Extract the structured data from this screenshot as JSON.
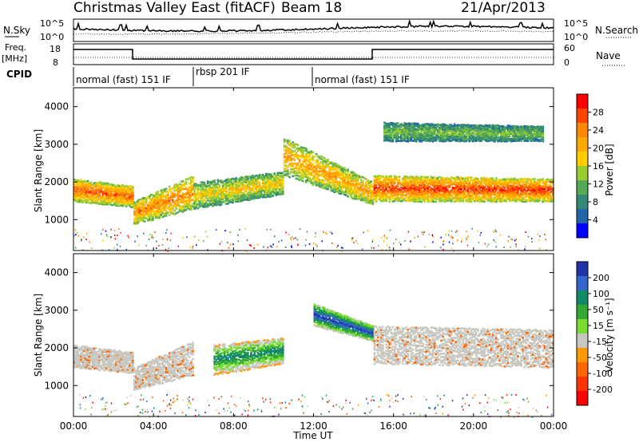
{
  "header": {
    "station": "Christmas Valley East (fitACF)",
    "beam": "Beam 18",
    "date": "21/Apr/2013"
  },
  "panels": {
    "nsky": {
      "left_label": "N.Sky",
      "right_label": "N.Search",
      "left_ticks": [
        "10^5",
        "10^0"
      ],
      "right_ticks": [
        "10^5",
        "10^0"
      ]
    },
    "freq": {
      "left_label_1": "Freq.",
      "left_label_2": "[MHz]",
      "right_label": "Nave",
      "left_ticks": [
        "18",
        "8"
      ],
      "right_ticks": [
        "60",
        "0"
      ]
    },
    "cpid": {
      "label": "CPID",
      "segments": [
        {
          "name": "normal (fast) 151 IF",
          "start_h": 0,
          "end_h": 6
        },
        {
          "name": "rbsp 201 IF",
          "start_h": 6,
          "end_h": 12
        },
        {
          "name": "normal (fast) 151 IF",
          "start_h": 12,
          "end_h": 24
        }
      ]
    }
  },
  "colorbars": {
    "power": {
      "label": "Power [dB]",
      "ticks": [
        "28",
        "24",
        "20",
        "16",
        "12",
        "8",
        "4"
      ],
      "colors": [
        "#ff0000",
        "#ff4400",
        "#ff8800",
        "#ffaa00",
        "#ffcc00",
        "#99cc33",
        "#55aa55",
        "#338877",
        "#2266aa",
        "#0000ff"
      ]
    },
    "velocity": {
      "label": "Velocity [m s⁻¹]",
      "ticks": [
        "200",
        "100",
        "50",
        "15",
        "-15",
        "-50",
        "-100",
        "-200"
      ],
      "colors": [
        "#2233aa",
        "#3366cc",
        "#118866",
        "#33aa33",
        "#77dd33",
        "#c8c8c0",
        "#ff9900",
        "#ff6600",
        "#ff3300",
        "#ff0000"
      ]
    }
  },
  "axes": {
    "ylabel": "Slant Range [km]",
    "y_ticks": [
      "1000",
      "2000",
      "3000",
      "4000"
    ],
    "x_ticks": [
      "00:00",
      "04:00",
      "08:00",
      "12:00",
      "16:00",
      "20:00",
      "00:00"
    ],
    "xlabel": "Time UT"
  },
  "chart_data": [
    {
      "type": "heatmap",
      "title": "",
      "xlabel": "Time UT",
      "ylabel": "Slant Range [km]",
      "xlim": [
        0,
        24
      ],
      "ylim": [
        180,
        4500
      ],
      "value": "Power [dB]",
      "bands": [
        {
          "t": [
            0,
            3
          ],
          "range": [
            [
              1500,
              2100
            ],
            [
              1350,
              1900
            ]
          ],
          "level": 26
        },
        {
          "t": [
            3,
            6
          ],
          "range": [
            [
              900,
              1500
            ],
            [
              1300,
              2200
            ]
          ],
          "level": 24
        },
        {
          "t": [
            6,
            10.5
          ],
          "range": [
            [
              1300,
              2000
            ],
            [
              1700,
              2300
            ]
          ],
          "level": 18
        },
        {
          "t": [
            10.5,
            15
          ],
          "range": [
            [
              2200,
              3200
            ],
            [
              1400,
              2000
            ]
          ],
          "level": 22
        },
        {
          "t": [
            15,
            24
          ],
          "range": [
            [
              1500,
              2200
            ],
            [
              1500,
              2100
            ]
          ],
          "level": 28
        },
        {
          "t": [
            15.5,
            23.5
          ],
          "range": [
            [
              3100,
              3600
            ],
            [
              3100,
              3500
            ]
          ],
          "level": 12
        }
      ]
    },
    {
      "type": "heatmap",
      "title": "",
      "xlabel": "Time UT",
      "ylabel": "Slant Range [km]",
      "xlim": [
        0,
        24
      ],
      "ylim": [
        180,
        4500
      ],
      "value": "Velocity [m s-1]",
      "bands": [
        {
          "t": [
            0,
            3
          ],
          "range": [
            [
              1500,
              2100
            ],
            [
              1350,
              1900
            ]
          ],
          "level": 0
        },
        {
          "t": [
            3,
            6
          ],
          "range": [
            [
              900,
              1500
            ],
            [
              1300,
              2200
            ]
          ],
          "level": 0
        },
        {
          "t": [
            7,
            10.5
          ],
          "range": [
            [
              1300,
              2100
            ],
            [
              1600,
              2300
            ]
          ],
          "level": 40
        },
        {
          "t": [
            12,
            15
          ],
          "range": [
            [
              2600,
              3200
            ],
            [
              2200,
              2600
            ]
          ],
          "level": 50
        },
        {
          "t": [
            15,
            24
          ],
          "range": [
            [
              1600,
              2600
            ],
            [
              1500,
              2500
            ]
          ],
          "level": 0
        }
      ]
    }
  ]
}
